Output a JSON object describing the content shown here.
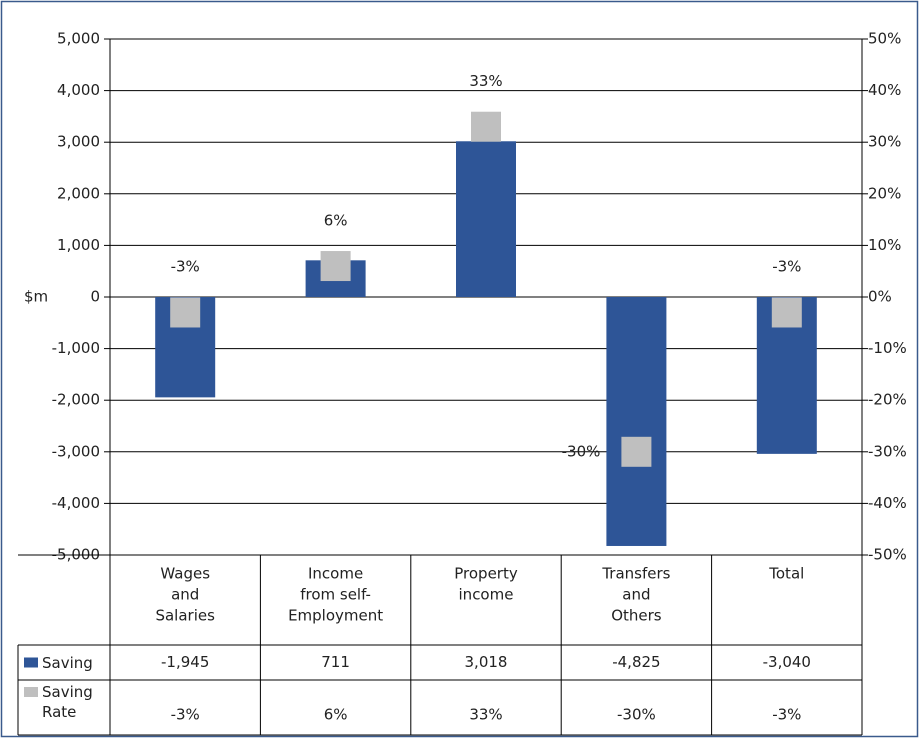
{
  "chart_data": {
    "type": "bar",
    "y_label": "$m",
    "categories": [
      [
        "Wages",
        "and",
        "Salaries"
      ],
      [
        "Income",
        "from self-",
        "Employment"
      ],
      [
        "Property",
        "income"
      ],
      [
        "Transfers",
        "and",
        "Others"
      ],
      [
        "Total"
      ]
    ],
    "series": [
      {
        "name": "Saving",
        "color": "#2e5597",
        "values": [
          -1945,
          711,
          3018,
          -4825,
          -3040
        ],
        "value_labels": [
          "-1,945",
          "711",
          "3,018",
          "-4,825",
          "-3,040"
        ]
      },
      {
        "name": "Saving Rate",
        "type": "marker",
        "axis": "y2",
        "color": "#bfbfbf",
        "values": [
          -3,
          6,
          33,
          -30,
          -3
        ],
        "value_labels": [
          "-3%",
          "6%",
          "33%",
          "-30%",
          "-3%"
        ]
      }
    ],
    "ylim": [
      -5000,
      5000
    ],
    "yticks": [
      {
        "value": -5000,
        "label": "-5,000"
      },
      {
        "value": -4000,
        "label": "-4,000"
      },
      {
        "value": -3000,
        "label": "-3,000"
      },
      {
        "value": -2000,
        "label": "-2,000"
      },
      {
        "value": -1000,
        "label": "-1,000"
      },
      0,
      {
        "value": 1000,
        "label": "1,000"
      },
      {
        "value": 2000,
        "label": "2,000"
      },
      {
        "value": 3000,
        "label": "3,000"
      },
      {
        "value": 4000,
        "label": "4,000"
      },
      {
        "value": 5000,
        "label": "5,000"
      }
    ],
    "y2lim": [
      -50,
      50
    ],
    "y2ticks": [
      {
        "value": -50,
        "label": "-50%"
      },
      {
        "value": -40,
        "label": "-40%"
      },
      {
        "value": -30,
        "label": "-30%"
      },
      {
        "value": -20,
        "label": "-20%"
      },
      {
        "value": -10,
        "label": "-10%"
      },
      {
        "value": 0,
        "label": "0%"
      },
      {
        "value": 10,
        "label": "10%"
      },
      {
        "value": 20,
        "label": "20%"
      },
      {
        "value": 30,
        "label": "30%"
      },
      {
        "value": 40,
        "label": "40%"
      },
      {
        "value": 50,
        "label": "50%"
      }
    ],
    "grid": true
  }
}
